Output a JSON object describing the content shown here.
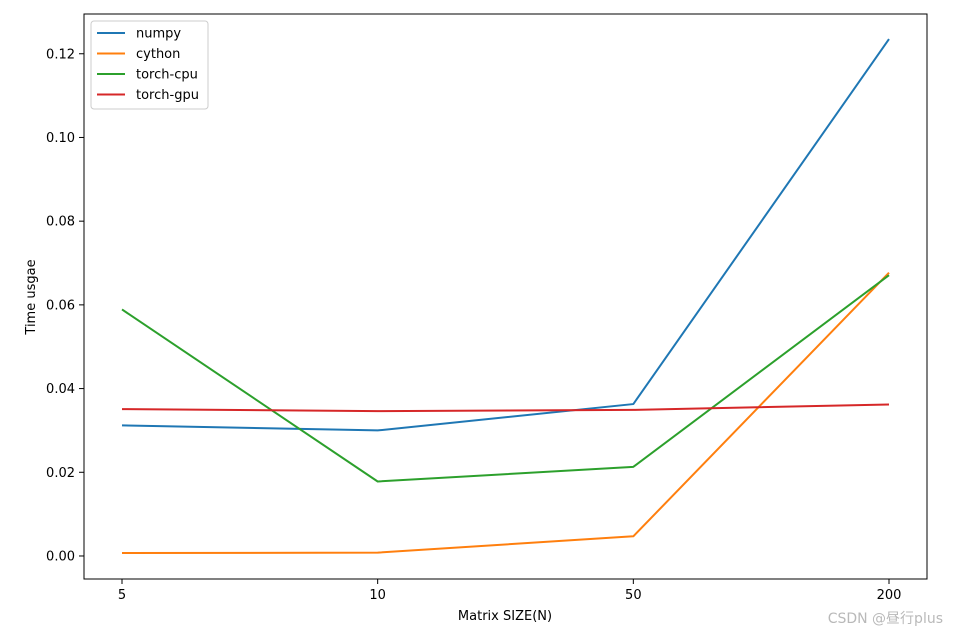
{
  "chart_data": {
    "type": "line",
    "title": "",
    "xlabel": "Matrix SIZE(N)",
    "ylabel": "Time usgae",
    "categories": [
      "5",
      "10",
      "50",
      "200"
    ],
    "ylim": [
      -0.0055,
      0.1295
    ],
    "yticks": [
      "0.00",
      "0.02",
      "0.04",
      "0.06",
      "0.08",
      "0.10",
      "0.12"
    ],
    "grid": false,
    "legend_position": "top-left",
    "series": [
      {
        "name": "numpy",
        "color": "#1f77b4",
        "values": [
          0.0312,
          0.03,
          0.0363,
          0.1235
        ]
      },
      {
        "name": "cython",
        "color": "#ff7f0e",
        "values": [
          0.0007,
          0.0008,
          0.0047,
          0.0677
        ]
      },
      {
        "name": "torch-cpu",
        "color": "#2ca02c",
        "values": [
          0.0589,
          0.0178,
          0.0213,
          0.0671
        ]
      },
      {
        "name": "torch-gpu",
        "color": "#d62728",
        "values": [
          0.0351,
          0.0346,
          0.0349,
          0.0362
        ]
      }
    ]
  },
  "watermark": "CSDN @昼行plus"
}
